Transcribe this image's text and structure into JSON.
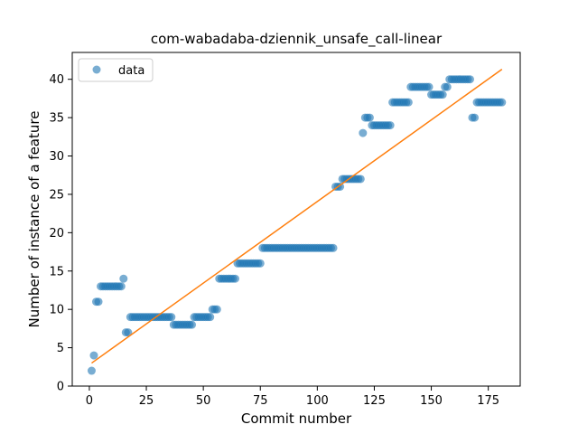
{
  "chart_data": {
    "type": "scatter",
    "title": "com-wabadaba-dziennik_unsafe_call-linear",
    "xlabel": "Commit number",
    "ylabel": "Number of instance of a feature",
    "xlim": [
      -7.5,
      189
    ],
    "ylim": [
      0,
      43.5
    ],
    "xticks": [
      0,
      25,
      50,
      75,
      100,
      125,
      150,
      175
    ],
    "yticks": [
      0,
      5,
      10,
      15,
      20,
      25,
      30,
      35,
      40
    ],
    "grid": false,
    "legend_position": "top-left",
    "legend": [
      "data"
    ],
    "colors": {
      "data": "#1f77b4",
      "fit": "#ff7f0e"
    },
    "series": [
      {
        "name": "data",
        "kind": "scatter",
        "runs": [
          [
            1,
            1,
            2
          ],
          [
            2,
            2,
            4
          ],
          [
            3,
            4,
            11
          ],
          [
            5,
            14,
            13
          ],
          [
            15,
            15,
            14
          ],
          [
            16,
            17,
            7
          ],
          [
            18,
            36,
            9
          ],
          [
            37,
            45,
            8
          ],
          [
            46,
            53,
            9
          ],
          [
            54,
            56,
            10
          ],
          [
            57,
            64,
            14
          ],
          [
            65,
            75,
            16
          ],
          [
            76,
            107,
            18
          ],
          [
            108,
            110,
            26
          ],
          [
            111,
            119,
            27
          ],
          [
            120,
            120,
            33
          ],
          [
            121,
            123,
            35
          ],
          [
            124,
            132,
            34
          ],
          [
            133,
            140,
            37
          ],
          [
            141,
            149,
            39
          ],
          [
            150,
            155,
            38
          ],
          [
            156,
            157,
            39
          ],
          [
            158,
            167,
            40
          ],
          [
            168,
            169,
            35
          ],
          [
            170,
            181,
            37
          ]
        ]
      },
      {
        "name": "",
        "kind": "line",
        "x": [
          1,
          181
        ],
        "y": [
          3.0,
          41.3
        ]
      }
    ]
  }
}
